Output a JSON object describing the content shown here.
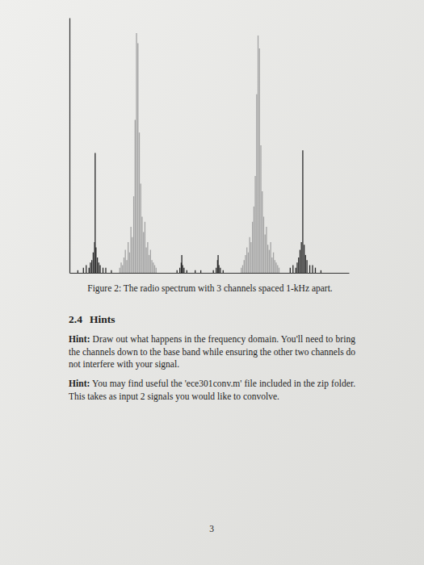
{
  "chart_data": {
    "type": "stem",
    "xlim": [
      0,
      100
    ],
    "ylim": [
      0,
      100
    ],
    "xticks": [],
    "yticks": [],
    "tick_labels": false,
    "grid": false,
    "series": [
      {
        "color": "#a3a3a3",
        "x": [
          18,
          18.5,
          19,
          19.5,
          20,
          20.5,
          21,
          21.5,
          22,
          22.5,
          23,
          23.5,
          24,
          24.5,
          25,
          25.5,
          26,
          26.5,
          27,
          27.5,
          28,
          28.5,
          29,
          29.5,
          30,
          30.5,
          31,
          61.5,
          62,
          62.5,
          63,
          63.5,
          64,
          64.5,
          65,
          65.5,
          66,
          66.5,
          67,
          67.5,
          68,
          68.5,
          69,
          69.5,
          70,
          70.5,
          71,
          71.5,
          72,
          72.5,
          73,
          73.5,
          74,
          74.5,
          75
        ],
        "values": [
          2,
          4,
          3,
          6,
          9,
          5,
          12,
          8,
          18,
          14,
          30,
          60,
          94,
          90,
          55,
          35,
          22,
          16,
          20,
          10,
          12,
          7,
          9,
          5,
          4,
          3,
          2,
          2,
          3,
          5,
          7,
          10,
          8,
          14,
          12,
          20,
          26,
          38,
          70,
          93,
          88,
          50,
          32,
          22,
          15,
          18,
          11,
          9,
          12,
          6,
          8,
          5,
          4,
          3,
          2
        ]
      },
      {
        "color": "#2a2a2a",
        "x": [
          3,
          5,
          6,
          7,
          7.5,
          8,
          8.5,
          9,
          9.2,
          9.5,
          10,
          10.5,
          11,
          12,
          13,
          15,
          38.5,
          39.5,
          40,
          40.2,
          40.5,
          41,
          42,
          45,
          47,
          51.5,
          52.5,
          53,
          53.2,
          53.5,
          54,
          55,
          79,
          80,
          81,
          81.5,
          82,
          82.5,
          83,
          83.5,
          84,
          84.5,
          85,
          86,
          87,
          88,
          90
        ],
        "values": [
          1,
          2,
          3,
          2,
          4,
          5,
          8,
          12,
          47,
          10,
          6,
          4,
          3,
          2,
          2,
          1,
          1,
          2,
          4,
          7,
          3,
          2,
          1,
          1,
          1,
          1,
          2,
          5,
          7,
          3,
          2,
          1,
          2,
          3,
          2,
          4,
          6,
          9,
          12,
          48,
          11,
          7,
          5,
          3,
          3,
          2,
          1
        ]
      }
    ]
  },
  "caption": "Figure 2: The radio spectrum with 3 channels spaced 1-kHz apart.",
  "section": {
    "number": "2.4",
    "title": "Hints"
  },
  "hints": [
    {
      "label": "Hint:",
      "lines": [
        "Draw out what happens in the frequency domain. You'll need to bring",
        "the channels down to the base band while ensuring the other two channels do",
        "not interfere with your signal."
      ]
    },
    {
      "label": "Hint:",
      "lines": [
        "You may find useful the 'ece301conv.m' file included in the zip folder.",
        "This takes as input 2 signals you would like to convolve."
      ]
    }
  ],
  "page_number": 3
}
